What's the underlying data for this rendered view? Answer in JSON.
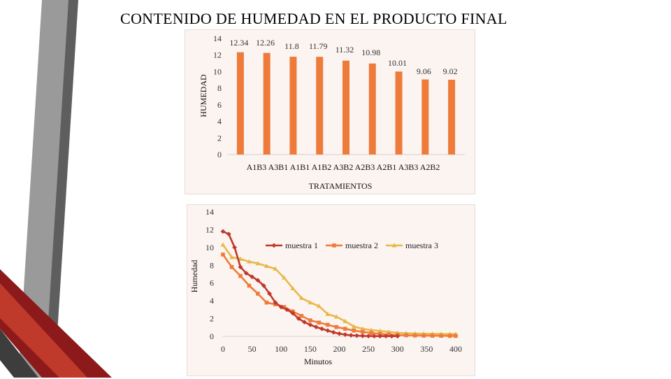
{
  "slide": {
    "title": "CONTENIDO DE HUMEDAD EN EL PRODUCTO FINAL"
  },
  "chart_data": [
    {
      "type": "bar",
      "title": "",
      "categories": [
        "A1B3",
        "A3B1",
        "A1B1",
        "A1B2",
        "A3B2",
        "A2B3",
        "A2B1",
        "A3B3",
        "A2B2"
      ],
      "values": [
        12.34,
        12.26,
        11.8,
        11.79,
        11.32,
        10.98,
        10.01,
        9.06,
        9.02
      ],
      "value_labels": [
        "12.34",
        "12.26",
        "11.8",
        "11.79",
        "11.32",
        "10.98",
        "10.01",
        "9.06",
        "9.02"
      ],
      "xlabel": "TRATAMIENTOS",
      "ylabel": "HUMEDAD",
      "ylim": [
        0,
        14
      ],
      "yticks": [
        0,
        2,
        4,
        6,
        8,
        10,
        12,
        14
      ],
      "ytick_labels": [
        "0",
        "2",
        "4",
        "6",
        "8",
        "10",
        "12",
        "14"
      ],
      "grid": false,
      "color": "#ef7b3a"
    },
    {
      "type": "line",
      "title": "",
      "xlabel": "Minutos",
      "ylabel": "Humedad",
      "xlim": [
        0,
        400
      ],
      "ylim": [
        0,
        14
      ],
      "xticks": [
        0,
        50,
        100,
        150,
        200,
        250,
        300,
        350,
        400
      ],
      "xtick_labels": [
        "0",
        "50",
        "100",
        "150",
        "200",
        "250",
        "300",
        "350",
        "400"
      ],
      "yticks": [
        0,
        2,
        4,
        6,
        8,
        10,
        12,
        14
      ],
      "ytick_labels": [
        "0",
        "2",
        "4",
        "6",
        "8",
        "10",
        "12",
        "14"
      ],
      "legend_position": "top",
      "grid": false,
      "series": [
        {
          "name": "muestra 1",
          "color": "#c0392b",
          "marker": "diamond",
          "x": [
            0,
            10,
            20,
            30,
            40,
            50,
            60,
            70,
            80,
            90,
            100,
            110,
            120,
            130,
            140,
            150,
            160,
            170,
            180,
            190,
            200,
            210,
            220,
            230,
            240,
            250,
            260,
            270,
            280,
            290,
            300
          ],
          "y": [
            11.8,
            11.5,
            10.0,
            7.8,
            7.1,
            6.7,
            6.3,
            5.7,
            4.8,
            3.8,
            3.3,
            3.0,
            2.6,
            2.0,
            1.6,
            1.3,
            1.05,
            0.85,
            0.65,
            0.45,
            0.3,
            0.2,
            0.12,
            0.08,
            0.05,
            0.03,
            0.02,
            0.02,
            0.02,
            0.02,
            0.02
          ]
        },
        {
          "name": "muestra 2",
          "color": "#ef7b3a",
          "marker": "square",
          "x": [
            0,
            15,
            30,
            45,
            60,
            75,
            90,
            105,
            120,
            135,
            150,
            165,
            180,
            195,
            210,
            225,
            240,
            255,
            270,
            285,
            300,
            315,
            330,
            345,
            360,
            375,
            390,
            400
          ],
          "y": [
            9.2,
            7.8,
            6.8,
            5.7,
            4.8,
            3.8,
            3.6,
            3.3,
            2.8,
            2.3,
            1.8,
            1.55,
            1.3,
            1.05,
            0.85,
            0.65,
            0.5,
            0.38,
            0.28,
            0.2,
            0.15,
            0.12,
            0.1,
            0.08,
            0.07,
            0.06,
            0.05,
            0.05
          ]
        },
        {
          "name": "muestra 3",
          "color": "#e8b84a",
          "marker": "triangle",
          "x": [
            0,
            15,
            30,
            45,
            60,
            75,
            90,
            105,
            120,
            135,
            150,
            165,
            180,
            195,
            210,
            225,
            240,
            255,
            270,
            285,
            300,
            315,
            330,
            345,
            360,
            375,
            390,
            400
          ],
          "y": [
            10.3,
            8.9,
            8.7,
            8.4,
            8.2,
            7.9,
            7.6,
            6.6,
            5.4,
            4.3,
            3.8,
            3.4,
            2.5,
            2.2,
            1.7,
            1.1,
            0.85,
            0.7,
            0.6,
            0.5,
            0.4,
            0.35,
            0.32,
            0.3,
            0.28,
            0.27,
            0.26,
            0.25
          ]
        }
      ]
    }
  ]
}
